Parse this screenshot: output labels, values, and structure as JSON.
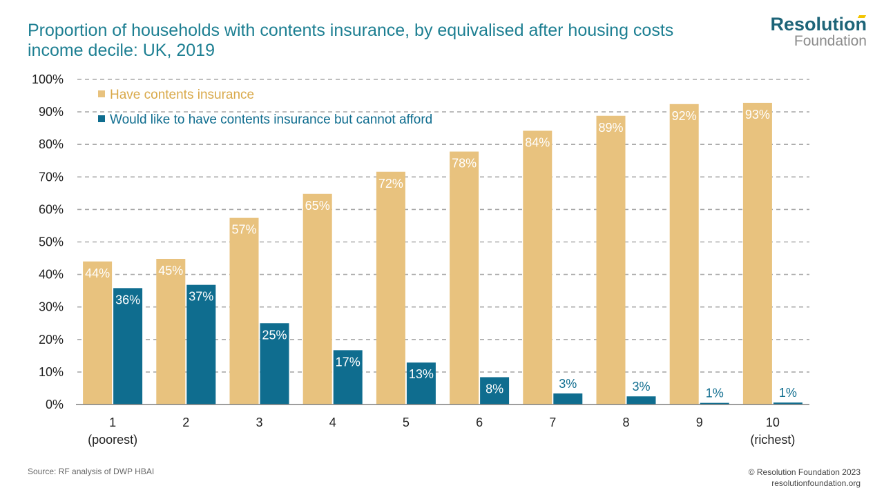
{
  "title_lines": [
    "Proportion of households with contents insurance, by equivalised after housing costs",
    "income decile: UK, 2019"
  ],
  "logo": {
    "line1": "Resolution",
    "line2": "Foundation"
  },
  "footer": {
    "source": "Source: RF analysis of DWP HBAI",
    "copyright": "© Resolution Foundation 2023",
    "website": "resolutionfoundation.org"
  },
  "colors": {
    "insured": "#e8c27e",
    "cannot_afford": "#0f6d8f",
    "title": "#1d7f92"
  },
  "chart_data": {
    "type": "bar",
    "title": "Proportion of households with contents insurance, by equivalised after housing costs income decile: UK, 2019",
    "categories": [
      "1",
      "2",
      "3",
      "4",
      "5",
      "6",
      "7",
      "8",
      "9",
      "10"
    ],
    "category_sublabels": [
      "(poorest)",
      "",
      "",
      "",
      "",
      "",
      "",
      "",
      "",
      "(richest)"
    ],
    "series": [
      {
        "name": "Have contents insurance",
        "values": [
          44,
          45,
          57,
          65,
          72,
          78,
          84,
          89,
          92,
          93
        ],
        "raw": [
          44.0,
          44.8,
          57.4,
          64.8,
          71.6,
          77.8,
          84.2,
          88.8,
          92.4,
          92.8
        ],
        "labels": [
          "44%",
          "45%",
          "57%",
          "65%",
          "72%",
          "78%",
          "84%",
          "89%",
          "92%",
          "93%"
        ]
      },
      {
        "name": "Would like to have contents insurance but cannot afford",
        "values": [
          36,
          37,
          25,
          17,
          13,
          8,
          3,
          3,
          1,
          1
        ],
        "raw": [
          35.8,
          36.8,
          25.0,
          16.7,
          12.9,
          8.4,
          3.4,
          2.5,
          0.5,
          0.6
        ],
        "labels": [
          "36%",
          "37%",
          "25%",
          "17%",
          "13%",
          "8%",
          "3%",
          "3%",
          "1%",
          "1%"
        ]
      }
    ],
    "yticks": [
      "0%",
      "10%",
      "20%",
      "30%",
      "40%",
      "50%",
      "60%",
      "70%",
      "80%",
      "90%",
      "100%"
    ],
    "ylim": [
      0,
      100
    ],
    "grid": true,
    "legend_position": "top-left"
  }
}
